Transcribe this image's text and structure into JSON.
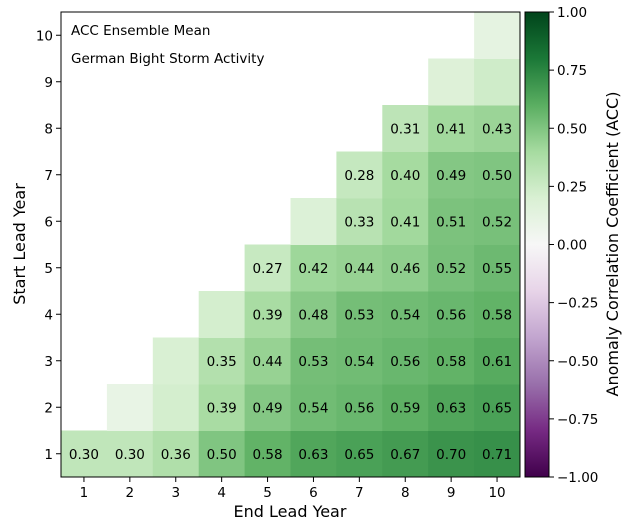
{
  "chart_data": {
    "type": "heatmap",
    "annotations": [
      "ACC Ensemble Mean",
      "German Bight Storm Activity"
    ],
    "xlabel": "End Lead Year",
    "ylabel": "Start Lead Year",
    "x_ticks": [
      1,
      2,
      3,
      4,
      5,
      6,
      7,
      8,
      9,
      10
    ],
    "y_ticks": [
      1,
      2,
      3,
      4,
      5,
      6,
      7,
      8,
      9,
      10
    ],
    "colorbar": {
      "label": "Anomaly Correlation Coefficient (ACC)",
      "range": [
        -1.0,
        1.0
      ],
      "ticks": [
        "1.00",
        "0.75",
        "0.50",
        "0.25",
        "0.00",
        "−0.25",
        "−0.50",
        "−0.75",
        "−1.00"
      ],
      "tick_values": [
        1.0,
        0.75,
        0.5,
        0.25,
        0.0,
        -0.25,
        -0.5,
        -0.75,
        -1.0
      ],
      "colormap": "PRGn"
    },
    "cells": [
      {
        "start": 1,
        "end": 1,
        "value": 0.3,
        "label": "0.30"
      },
      {
        "start": 1,
        "end": 2,
        "value": 0.3,
        "label": "0.30"
      },
      {
        "start": 1,
        "end": 3,
        "value": 0.36,
        "label": "0.36"
      },
      {
        "start": 1,
        "end": 4,
        "value": 0.5,
        "label": "0.50"
      },
      {
        "start": 1,
        "end": 5,
        "value": 0.58,
        "label": "0.58"
      },
      {
        "start": 1,
        "end": 6,
        "value": 0.63,
        "label": "0.63"
      },
      {
        "start": 1,
        "end": 7,
        "value": 0.65,
        "label": "0.65"
      },
      {
        "start": 1,
        "end": 8,
        "value": 0.67,
        "label": "0.67"
      },
      {
        "start": 1,
        "end": 9,
        "value": 0.7,
        "label": "0.70"
      },
      {
        "start": 1,
        "end": 10,
        "value": 0.71,
        "label": "0.71"
      },
      {
        "start": 2,
        "end": 2,
        "value": 0.1,
        "label": ""
      },
      {
        "start": 2,
        "end": 3,
        "value": 0.22,
        "label": ""
      },
      {
        "start": 2,
        "end": 4,
        "value": 0.39,
        "label": "0.39"
      },
      {
        "start": 2,
        "end": 5,
        "value": 0.49,
        "label": "0.49"
      },
      {
        "start": 2,
        "end": 6,
        "value": 0.54,
        "label": "0.54"
      },
      {
        "start": 2,
        "end": 7,
        "value": 0.56,
        "label": "0.56"
      },
      {
        "start": 2,
        "end": 8,
        "value": 0.59,
        "label": "0.59"
      },
      {
        "start": 2,
        "end": 9,
        "value": 0.63,
        "label": "0.63"
      },
      {
        "start": 2,
        "end": 10,
        "value": 0.65,
        "label": "0.65"
      },
      {
        "start": 3,
        "end": 3,
        "value": 0.2,
        "label": ""
      },
      {
        "start": 3,
        "end": 4,
        "value": 0.35,
        "label": "0.35"
      },
      {
        "start": 3,
        "end": 5,
        "value": 0.44,
        "label": "0.44"
      },
      {
        "start": 3,
        "end": 6,
        "value": 0.53,
        "label": "0.53"
      },
      {
        "start": 3,
        "end": 7,
        "value": 0.54,
        "label": "0.54"
      },
      {
        "start": 3,
        "end": 8,
        "value": 0.56,
        "label": "0.56"
      },
      {
        "start": 3,
        "end": 9,
        "value": 0.58,
        "label": "0.58"
      },
      {
        "start": 3,
        "end": 10,
        "value": 0.61,
        "label": "0.61"
      },
      {
        "start": 4,
        "end": 4,
        "value": 0.22,
        "label": ""
      },
      {
        "start": 4,
        "end": 5,
        "value": 0.39,
        "label": "0.39"
      },
      {
        "start": 4,
        "end": 6,
        "value": 0.48,
        "label": "0.48"
      },
      {
        "start": 4,
        "end": 7,
        "value": 0.53,
        "label": "0.53"
      },
      {
        "start": 4,
        "end": 8,
        "value": 0.54,
        "label": "0.54"
      },
      {
        "start": 4,
        "end": 9,
        "value": 0.56,
        "label": "0.56"
      },
      {
        "start": 4,
        "end": 10,
        "value": 0.58,
        "label": "0.58"
      },
      {
        "start": 5,
        "end": 5,
        "value": 0.27,
        "label": "0.27"
      },
      {
        "start": 5,
        "end": 6,
        "value": 0.42,
        "label": "0.42"
      },
      {
        "start": 5,
        "end": 7,
        "value": 0.44,
        "label": "0.44"
      },
      {
        "start": 5,
        "end": 8,
        "value": 0.46,
        "label": "0.46"
      },
      {
        "start": 5,
        "end": 9,
        "value": 0.52,
        "label": "0.52"
      },
      {
        "start": 5,
        "end": 10,
        "value": 0.55,
        "label": "0.55"
      },
      {
        "start": 6,
        "end": 6,
        "value": 0.18,
        "label": ""
      },
      {
        "start": 6,
        "end": 7,
        "value": 0.33,
        "label": "0.33"
      },
      {
        "start": 6,
        "end": 8,
        "value": 0.41,
        "label": "0.41"
      },
      {
        "start": 6,
        "end": 9,
        "value": 0.51,
        "label": "0.51"
      },
      {
        "start": 6,
        "end": 10,
        "value": 0.52,
        "label": "0.52"
      },
      {
        "start": 7,
        "end": 7,
        "value": 0.28,
        "label": "0.28"
      },
      {
        "start": 7,
        "end": 8,
        "value": 0.4,
        "label": "0.40"
      },
      {
        "start": 7,
        "end": 9,
        "value": 0.49,
        "label": "0.49"
      },
      {
        "start": 7,
        "end": 10,
        "value": 0.5,
        "label": "0.50"
      },
      {
        "start": 8,
        "end": 8,
        "value": 0.31,
        "label": "0.31"
      },
      {
        "start": 8,
        "end": 9,
        "value": 0.41,
        "label": "0.41"
      },
      {
        "start": 8,
        "end": 10,
        "value": 0.43,
        "label": "0.43"
      },
      {
        "start": 9,
        "end": 9,
        "value": 0.17,
        "label": ""
      },
      {
        "start": 9,
        "end": 10,
        "value": 0.24,
        "label": ""
      },
      {
        "start": 10,
        "end": 10,
        "value": 0.12,
        "label": ""
      }
    ]
  }
}
